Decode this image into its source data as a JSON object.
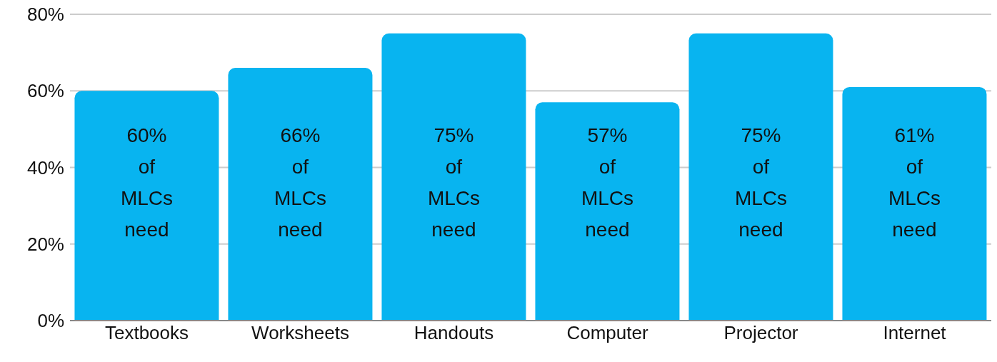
{
  "chart_data": {
    "type": "bar",
    "categories": [
      "Textbooks",
      "Worksheets",
      "Handouts",
      "Computer",
      "Projector",
      "Internet"
    ],
    "values": [
      60,
      66,
      75,
      57,
      75,
      61
    ],
    "value_labels": [
      "60% of MLCs need",
      "66% of MLCs need",
      "75% of MLCs need",
      "57% of MLCs need",
      "75% of MLCs need",
      "61% of MLCs need"
    ],
    "color": "#08b4f0",
    "ylim": [
      0,
      80
    ],
    "yticks": [
      {
        "value": 0,
        "label": "0%"
      },
      {
        "value": 20,
        "label": "20%"
      },
      {
        "value": 40,
        "label": "40%"
      },
      {
        "value": 60,
        "label": "60%"
      },
      {
        "value": 80,
        "label": "80%"
      }
    ],
    "grid": "y",
    "legend": false
  }
}
